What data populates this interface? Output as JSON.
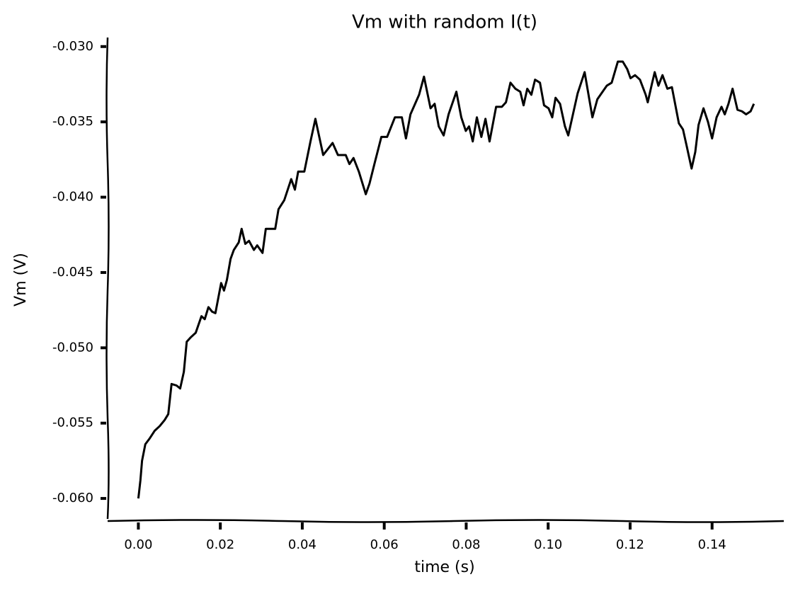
{
  "chart_data": {
    "type": "line",
    "title": "Vm with random I(t)",
    "xlabel": "time (s)",
    "ylabel": "Vm (V)",
    "x": [
      0,
      0.0005,
      0.0009,
      0.0017,
      0.0028,
      0.004,
      0.0052,
      0.0064,
      0.0073,
      0.0081,
      0.0093,
      0.0102,
      0.0111,
      0.0118,
      0.0128,
      0.014,
      0.0154,
      0.0162,
      0.0171,
      0.018,
      0.0188,
      0.0202,
      0.0209,
      0.0216,
      0.0225,
      0.0233,
      0.0245,
      0.0252,
      0.0261,
      0.027,
      0.0282,
      0.029,
      0.0303,
      0.0311,
      0.0334,
      0.0342,
      0.0356,
      0.0373,
      0.0382,
      0.039,
      0.0405,
      0.042,
      0.0432,
      0.0451,
      0.0474,
      0.0487,
      0.0506,
      0.0515,
      0.0525,
      0.0538,
      0.0555,
      0.0564,
      0.0576,
      0.0593,
      0.0607,
      0.0626,
      0.0643,
      0.0653,
      0.0664,
      0.0685,
      0.0697,
      0.0713,
      0.0723,
      0.0733,
      0.0745,
      0.0757,
      0.0776,
      0.0788,
      0.0799,
      0.0807,
      0.0816,
      0.0826,
      0.0837,
      0.0847,
      0.0857,
      0.0873,
      0.0887,
      0.0897,
      0.0908,
      0.092,
      0.0932,
      0.094,
      0.0949,
      0.0959,
      0.0968,
      0.098,
      0.099,
      0.1001,
      0.101,
      0.1018,
      0.1029,
      0.1041,
      0.1049,
      0.1058,
      0.1072,
      0.1089,
      0.1108,
      0.112,
      0.1143,
      0.1155,
      0.117,
      0.1182,
      0.1193,
      0.1201,
      0.1212,
      0.1224,
      0.1238,
      0.1243,
      0.1253,
      0.126,
      0.1269,
      0.1279,
      0.1291,
      0.1302,
      0.1319,
      0.1329,
      0.1338,
      0.135,
      0.1359,
      0.1367,
      0.1379,
      0.139,
      0.14,
      0.1411,
      0.1423,
      0.1431,
      0.144,
      0.145,
      0.1462,
      0.1473,
      0.1483,
      0.1494,
      0.1502
    ],
    "series": [
      {
        "color": "#000000",
        "values": [
          -0.06,
          -0.0588,
          -0.0575,
          -0.0564,
          -0.056,
          -0.0555,
          -0.0552,
          -0.0548,
          -0.0544,
          -0.0524,
          -0.0525,
          -0.0527,
          -0.0516,
          -0.0496,
          -0.0493,
          -0.049,
          -0.0479,
          -0.0481,
          -0.0473,
          -0.0476,
          -0.0477,
          -0.0457,
          -0.0462,
          -0.0455,
          -0.0441,
          -0.0435,
          -0.043,
          -0.0421,
          -0.0431,
          -0.0429,
          -0.0435,
          -0.0432,
          -0.0437,
          -0.0421,
          -0.0421,
          -0.0408,
          -0.0402,
          -0.0388,
          -0.0395,
          -0.0383,
          -0.0383,
          -0.0363,
          -0.0348,
          -0.0372,
          -0.0364,
          -0.0372,
          -0.0372,
          -0.0378,
          -0.0374,
          -0.0383,
          -0.0398,
          -0.0391,
          -0.0378,
          -0.036,
          -0.036,
          -0.0347,
          -0.0347,
          -0.0361,
          -0.0345,
          -0.0332,
          -0.032,
          -0.0341,
          -0.0338,
          -0.0353,
          -0.0359,
          -0.0345,
          -0.033,
          -0.0347,
          -0.0356,
          -0.0353,
          -0.0363,
          -0.0347,
          -0.036,
          -0.0348,
          -0.0363,
          -0.034,
          -0.034,
          -0.0337,
          -0.0324,
          -0.0328,
          -0.033,
          -0.0339,
          -0.0328,
          -0.0332,
          -0.0322,
          -0.0324,
          -0.0339,
          -0.0341,
          -0.0347,
          -0.0334,
          -0.0338,
          -0.0353,
          -0.0359,
          -0.0348,
          -0.0331,
          -0.0317,
          -0.0347,
          -0.0335,
          -0.0326,
          -0.0324,
          -0.031,
          -0.031,
          -0.0315,
          -0.0321,
          -0.0319,
          -0.0322,
          -0.0332,
          -0.0337,
          -0.0325,
          -0.0317,
          -0.0326,
          -0.0319,
          -0.0328,
          -0.0327,
          -0.0351,
          -0.0355,
          -0.0366,
          -0.0381,
          -0.037,
          -0.0352,
          -0.0341,
          -0.035,
          -0.0361,
          -0.0347,
          -0.034,
          -0.0345,
          -0.0338,
          -0.0328,
          -0.0342,
          -0.0343,
          -0.0345,
          -0.0343,
          -0.0338
        ]
      }
    ],
    "xlim": [
      -0.0075,
      0.1575
    ],
    "ylim": [
      -0.0615,
      -0.0294
    ],
    "xticks": [
      {
        "value": 0,
        "label": "0.00"
      },
      {
        "value": 0.02,
        "label": "0.02"
      },
      {
        "value": 0.04,
        "label": "0.04"
      },
      {
        "value": 0.06,
        "label": "0.06"
      },
      {
        "value": 0.08,
        "label": "0.08"
      },
      {
        "value": 0.1,
        "label": "0.10"
      },
      {
        "value": 0.12,
        "label": "0.12"
      },
      {
        "value": 0.14,
        "label": "0.14"
      }
    ],
    "yticks": [
      {
        "value": -0.06,
        "label": "-0.060"
      },
      {
        "value": -0.055,
        "label": "-0.055"
      },
      {
        "value": -0.05,
        "label": "-0.050"
      },
      {
        "value": -0.045,
        "label": "-0.045"
      },
      {
        "value": -0.04,
        "label": "-0.040"
      },
      {
        "value": -0.035,
        "label": "-0.035"
      },
      {
        "value": -0.03,
        "label": "-0.030"
      }
    ],
    "grid": false
  }
}
